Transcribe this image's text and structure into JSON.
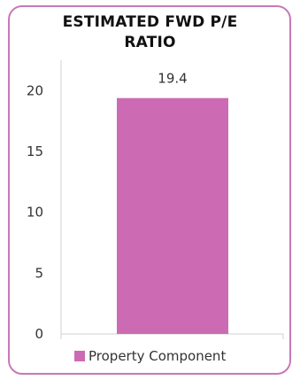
{
  "chart_data": {
    "type": "bar",
    "title_lines": [
      "ESTIMATED FWD P/E",
      "RATIO"
    ],
    "categories": [
      ""
    ],
    "series": [
      {
        "name": "Property Component",
        "values": [
          19.4
        ],
        "color": "#cc6bb4"
      }
    ],
    "data_labels": [
      "19.4"
    ],
    "ylim": [
      0,
      22
    ],
    "yticks": [
      0,
      5,
      10,
      15,
      20
    ],
    "grid": false,
    "legend": "bottom",
    "border_color": "#c879b8"
  }
}
